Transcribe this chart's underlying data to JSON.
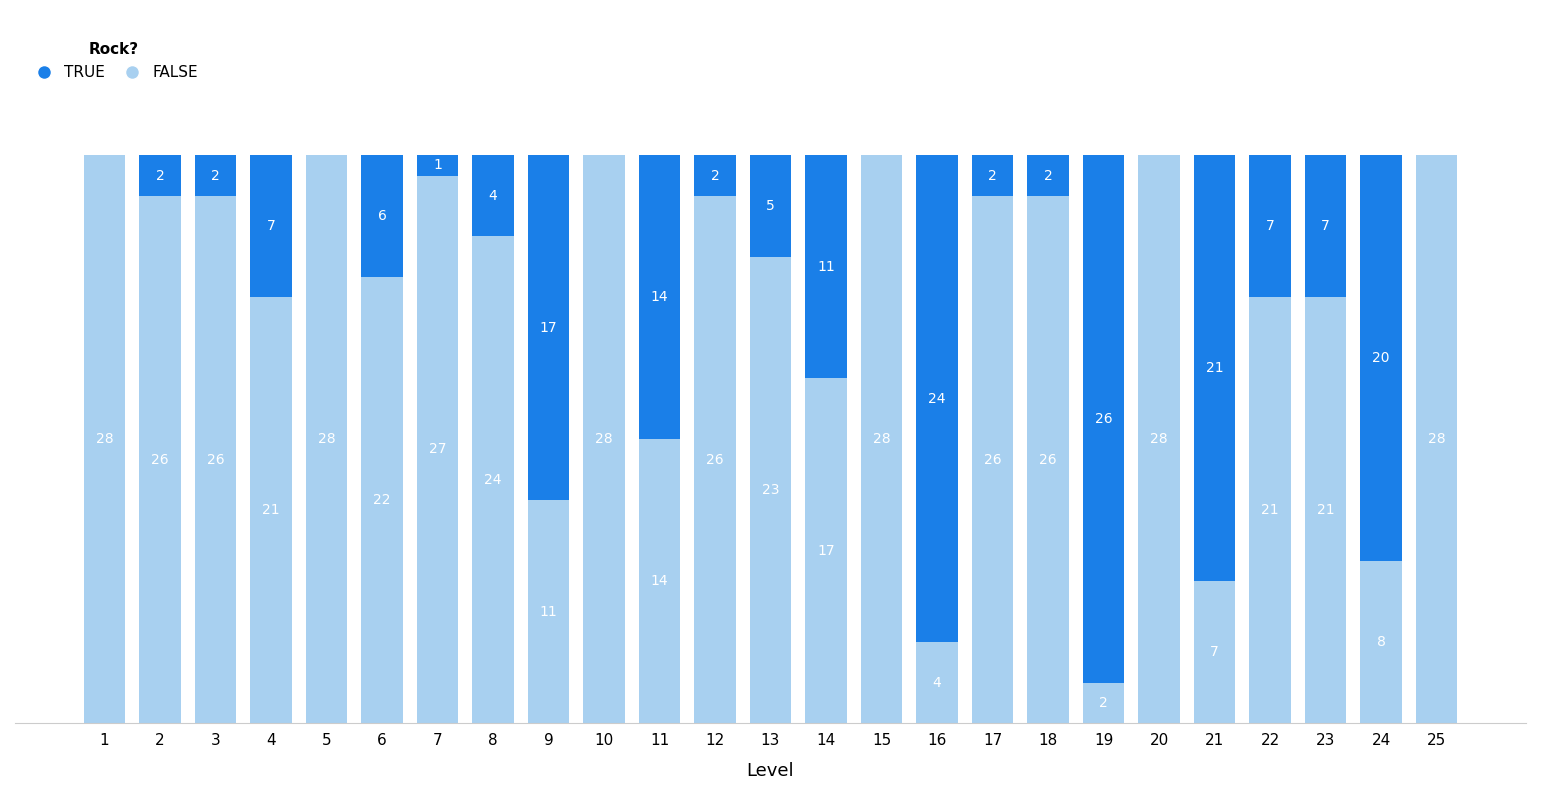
{
  "levels": [
    1,
    2,
    3,
    4,
    5,
    6,
    7,
    8,
    9,
    10,
    11,
    12,
    13,
    14,
    15,
    16,
    17,
    18,
    19,
    20,
    21,
    22,
    23,
    24,
    25
  ],
  "true_values": [
    0,
    2,
    2,
    7,
    0,
    6,
    1,
    4,
    17,
    0,
    14,
    2,
    5,
    11,
    0,
    24,
    2,
    2,
    26,
    0,
    21,
    7,
    7,
    20,
    0
  ],
  "false_values": [
    28,
    26,
    26,
    21,
    28,
    22,
    27,
    24,
    11,
    28,
    14,
    26,
    23,
    17,
    28,
    4,
    26,
    26,
    2,
    28,
    7,
    21,
    21,
    8,
    28
  ],
  "true_color": "#1a7fe8",
  "false_color": "#a8d0f0",
  "xlabel": "Level",
  "ylabel": "",
  "legend_title": "Rock?",
  "background_color": "#ffffff",
  "bar_width": 0.75,
  "ylim": [
    0,
    32
  ],
  "label_color": "white",
  "label_fontsize": 10
}
